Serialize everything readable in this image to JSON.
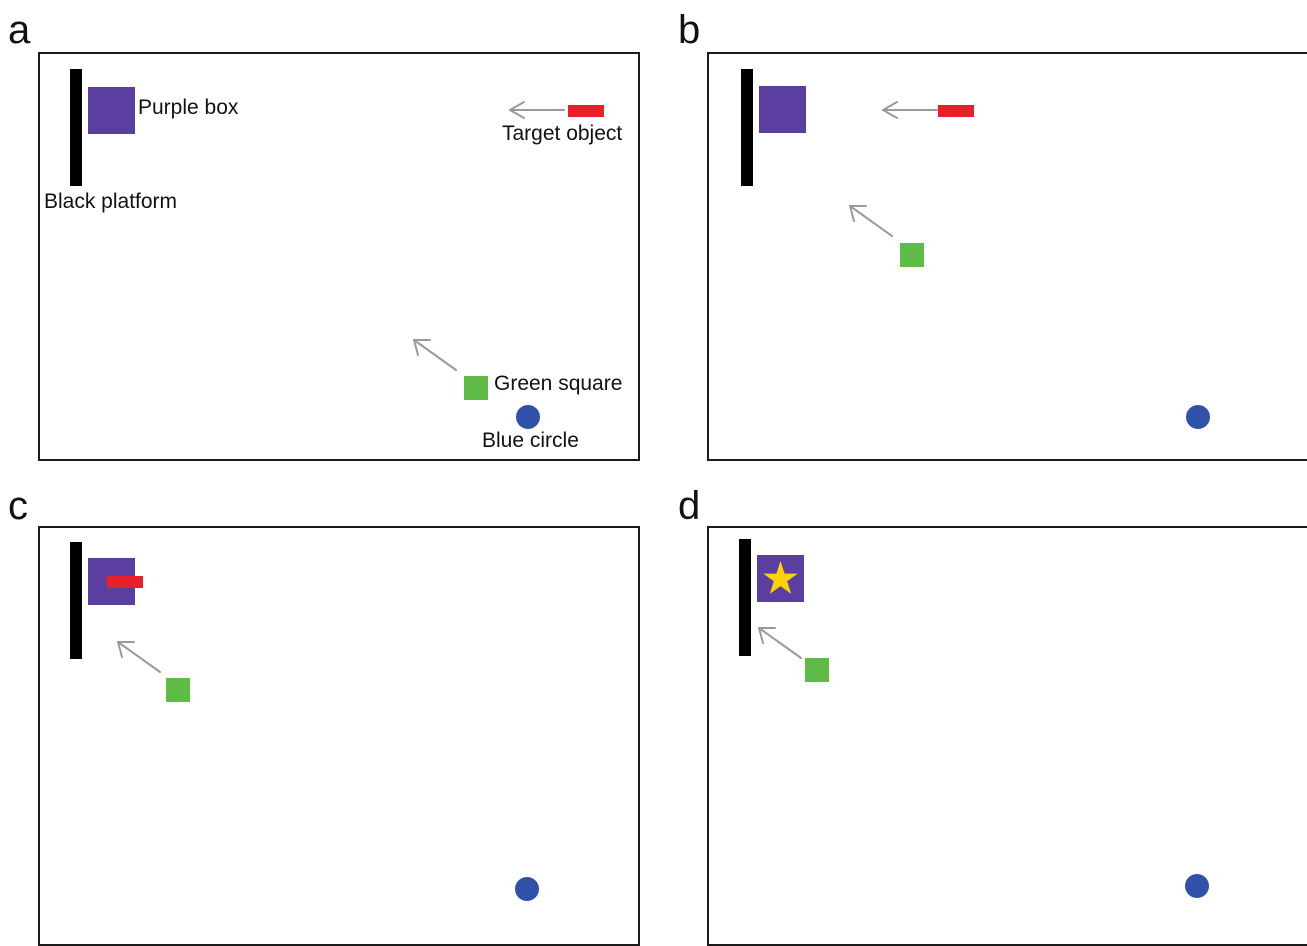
{
  "colors": {
    "platform": "#000000",
    "purple_box": "#5b3fa0",
    "target_object": "#e8202a",
    "green_square": "#5dbb46",
    "blue_circle": "#2f52a8",
    "arrow": "#9a9a9a",
    "star": "#ffd200"
  },
  "icons": {
    "reward": "star-icon",
    "motion": "arrow-icon"
  },
  "panels": [
    {
      "letter": "a",
      "labels": {
        "purple_box": "Purple box",
        "target_object": "Target object",
        "black_platform": "Black platform",
        "green_square": "Green square",
        "blue_circle": "Blue circle"
      }
    },
    {
      "letter": "b"
    },
    {
      "letter": "c"
    },
    {
      "letter": "d"
    }
  ]
}
